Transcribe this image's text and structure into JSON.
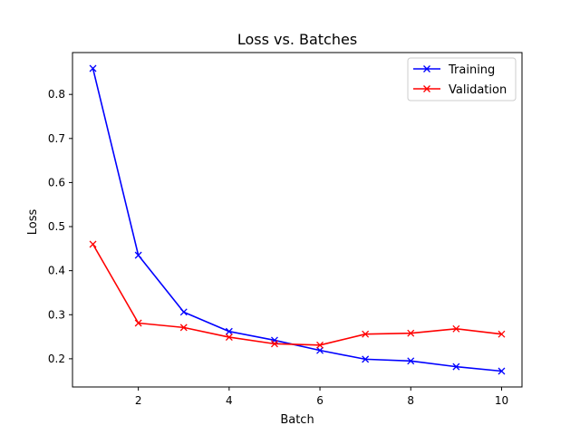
{
  "chart_data": {
    "type": "line",
    "title": "Loss vs. Batches",
    "xlabel": "Batch",
    "ylabel": "Loss",
    "x": [
      1,
      2,
      3,
      4,
      5,
      6,
      7,
      8,
      9,
      10
    ],
    "xlim": [
      0.55,
      10.45
    ],
    "ylim": [
      0.136,
      0.895
    ],
    "xticks": [
      2,
      4,
      6,
      8,
      10
    ],
    "yticks": [
      0.2,
      0.3,
      0.4,
      0.5,
      0.6,
      0.7,
      0.8
    ],
    "xtick_labels": [
      "2",
      "4",
      "6",
      "8",
      "10"
    ],
    "ytick_labels": [
      "0.2",
      "0.3",
      "0.4",
      "0.5",
      "0.6",
      "0.7",
      "0.8"
    ],
    "grid": false,
    "legend_position": "top-right",
    "series": [
      {
        "name": "Training",
        "color": "#0000ff",
        "marker": "x",
        "values": [
          0.859,
          0.435,
          0.306,
          0.262,
          0.242,
          0.219,
          0.199,
          0.195,
          0.182,
          0.172
        ]
      },
      {
        "name": "Validation",
        "color": "#ff0000",
        "marker": "x",
        "values": [
          0.46,
          0.281,
          0.271,
          0.249,
          0.234,
          0.231,
          0.256,
          0.258,
          0.268,
          0.256
        ]
      }
    ]
  }
}
